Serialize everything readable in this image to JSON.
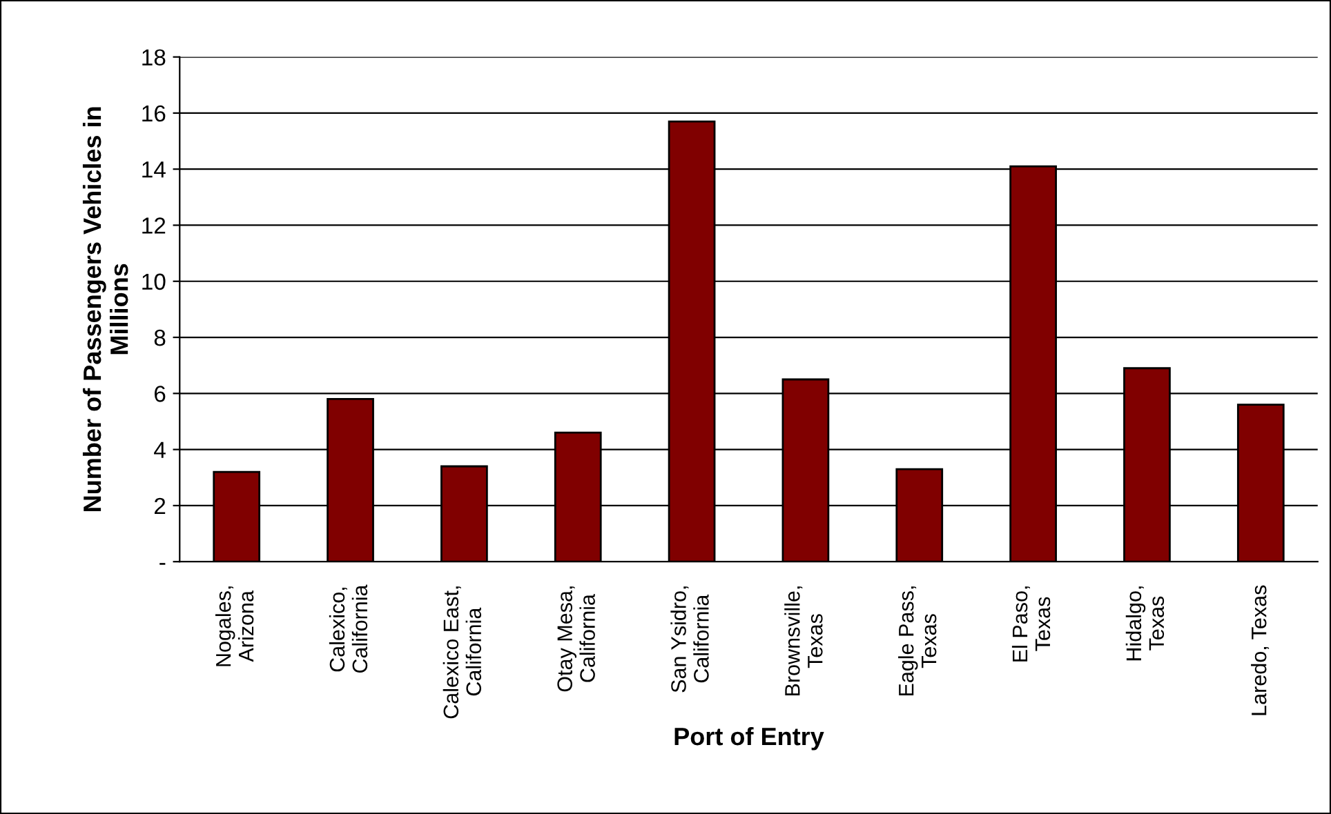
{
  "chart_data": {
    "type": "bar",
    "xlabel": "Port of Entry",
    "ylabel": "Number of Passengers Vehicles in\nMillions",
    "categories": [
      "Nogales,\nArizona",
      "Calexico,\nCalifornia",
      "Calexico East,\nCalifornia",
      "Otay Mesa,\nCalifornia",
      "San Ysidro,\nCalifornia",
      "Brownsville,\nTexas",
      "Eagle Pass,\nTexas",
      "El Paso,\nTexas",
      "Hidalgo,\nTexas",
      "Laredo, Texas"
    ],
    "values": [
      3.2,
      5.8,
      3.4,
      4.6,
      15.7,
      6.5,
      3.3,
      14.1,
      6.9,
      5.6
    ],
    "color": "#800000",
    "ylim": [
      0,
      18
    ],
    "yticks": [
      {
        "value": 0,
        "label": "-"
      },
      2,
      4,
      6,
      8,
      10,
      12,
      14,
      16,
      18
    ],
    "grid": "y"
  }
}
